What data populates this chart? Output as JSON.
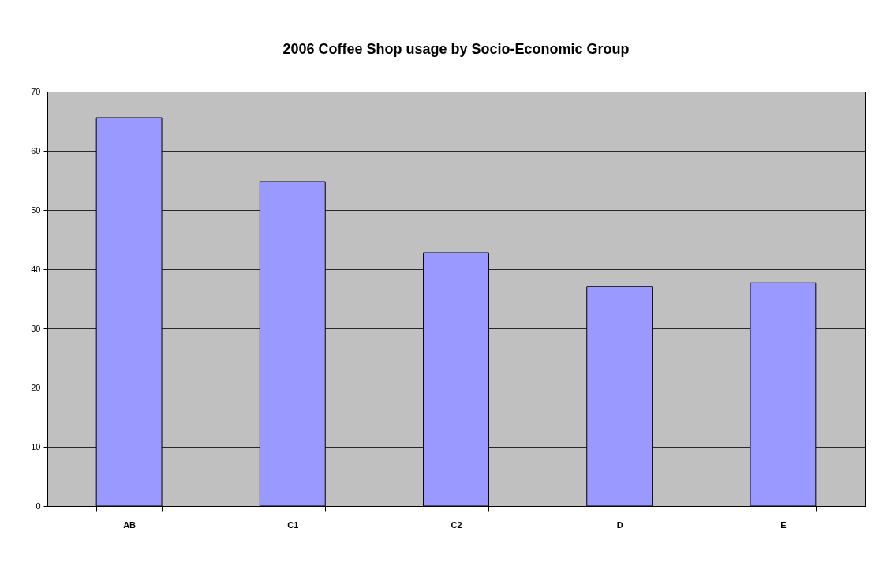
{
  "chart_data": {
    "type": "bar",
    "title": "2006 Coffee Shop usage by Socio-Economic Group",
    "categories": [
      "AB",
      "C1",
      "C2",
      "D",
      "E"
    ],
    "values": [
      65.6,
      54.8,
      42.8,
      37.1,
      37.7
    ],
    "color": "#9999ff",
    "ylim": [
      0,
      70
    ],
    "yticks": [
      0,
      10,
      20,
      30,
      40,
      50,
      60,
      70
    ],
    "grid": "y"
  }
}
